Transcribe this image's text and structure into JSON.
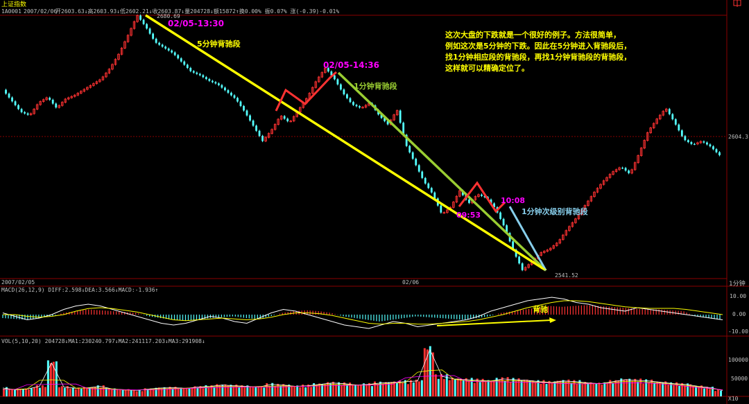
{
  "header": {
    "title": "上证指数",
    "code": "1A0001",
    "date": "2007/02/06",
    "quote": "开2603.63↓高2603.93↓低2602.21↓收2603.87↓量204728↓额15872↑换0.00% 振0.07% 涨(-0.39)-0.01%"
  },
  "time_axis": {
    "left_label": "2007/02/05",
    "center_label": "02/06",
    "right_label": "1分钟"
  },
  "price_panel": {
    "high_label": "2680.69",
    "low_label": "2541.52",
    "right_label": "2604.3",
    "annotations": {
      "t1": "02/05-13:30",
      "seg5": "5分钟背驰段",
      "t2": "02/05-14:36",
      "seg1": "1分钟背驰段",
      "t3": "09:53",
      "t4": "10:08",
      "seg1b": "1分钟次级别背驰段"
    },
    "note_lines": [
      "这次大盘的下跌就是一个很好的例子。方法很简单，",
      "例如这次是5分钟的下跌。因此在5分钟进入背驰段后，",
      "找1分钟相应段的背驰段，再找1分钟背驰段的背驰段，",
      "这样就可以精确定位了。"
    ]
  },
  "macd_panel": {
    "header": "MACD(26,12,9)  DIFF:2.598↓DEA:3.566↓MACD:-1.936↑",
    "ticks": [
      "10.00",
      "0.00",
      "-10.00"
    ],
    "annotation": "背驰"
  },
  "vol_panel": {
    "header": "VOL(5,10,20)  204728↓MA1:230240.797↓MA2:241117.203↓MA3:291908↓",
    "ticks": [
      "100000",
      "50000",
      "X10"
    ]
  },
  "colors": {
    "up": "#ff3232",
    "down": "#54ffff",
    "line5": "#ffff00",
    "line1": "#9acd32",
    "line1b": "#87ceeb",
    "magenta": "#ff00ff",
    "grid": "#8b0000",
    "text": "#c0c0c0"
  },
  "chart_data": {
    "type": "line",
    "title": "上证指数 1分钟",
    "y_axis_price": {
      "min": 2541.52,
      "max": 2680.69
    },
    "key_points": [
      {
        "label": "02/05-13:30",
        "price": 2680.69
      },
      {
        "label": "02/05-14:36",
        "price": 2652
      },
      {
        "label": "09:53",
        "price": 2580
      },
      {
        "label": "10:08",
        "price": 2583
      },
      {
        "label": "low",
        "price": 2541.52
      },
      {
        "label": "last",
        "price": 2604.3
      }
    ],
    "price_path": [
      2640,
      2634,
      2628,
      2626,
      2633,
      2636,
      2630,
      2635,
      2637,
      2640,
      2643,
      2646,
      2652,
      2660,
      2670,
      2680.69,
      2674,
      2666,
      2663,
      2660,
      2655,
      2650,
      2648,
      2645,
      2643,
      2639,
      2635,
      2628,
      2620,
      2612,
      2618,
      2626,
      2622,
      2629,
      2636,
      2645,
      2652,
      2646,
      2638,
      2632,
      2630,
      2633,
      2626,
      2621,
      2629,
      2610,
      2600,
      2590,
      2583,
      2572,
      2576,
      2585,
      2578,
      2583,
      2581,
      2575,
      2565,
      2552,
      2541.52,
      2546,
      2551,
      2553,
      2557,
      2564,
      2570,
      2577,
      2584,
      2590,
      2595,
      2598,
      2594,
      2605,
      2617,
      2624,
      2630,
      2622,
      2613,
      2610,
      2612,
      2609,
      2604.3
    ],
    "macd_scale": [
      -10,
      10
    ],
    "macd_histogram": [
      -2,
      -2.5,
      -3,
      -2,
      -1,
      1,
      2,
      3,
      2.5,
      2,
      1.5,
      1,
      -1,
      -2,
      -3,
      -3.5,
      -3,
      -2,
      -1.5,
      -1,
      -2,
      -2.5,
      -1,
      1,
      2,
      2.5,
      2,
      1,
      -1,
      -2,
      -3,
      -4,
      -3,
      -2,
      -1,
      -1.5,
      -2,
      -2.5,
      -3,
      -2,
      -1,
      1,
      2,
      3,
      4,
      5,
      4.5,
      5,
      5.5,
      5,
      4.5,
      4,
      3.5,
      3,
      3,
      2.5,
      2,
      -1,
      -2,
      -3
    ],
    "diff_line": [
      1,
      -1,
      -3,
      -2,
      0,
      3,
      5,
      6,
      5,
      3,
      1,
      -1,
      -3,
      -5,
      -6,
      -5,
      -3,
      -1,
      -2,
      -4,
      -5,
      -2,
      1,
      3,
      2,
      0,
      -2,
      -4,
      -6,
      -7,
      -8,
      -6,
      -4,
      -5,
      -7,
      -6,
      -5,
      -4,
      -3,
      -1,
      2,
      4,
      6,
      8,
      9,
      10,
      9,
      7,
      6,
      4,
      3,
      2,
      4,
      3,
      2,
      1,
      0,
      -1,
      -2,
      -3
    ],
    "dea_line": [
      0,
      0,
      -1,
      -1.5,
      -1,
      0,
      2,
      3.5,
      4,
      3.5,
      2.5,
      1.5,
      0,
      -1.5,
      -3,
      -3.5,
      -3,
      -2.5,
      -2,
      -2.5,
      -3,
      -2.5,
      -1.5,
      0,
      1,
      1,
      0.5,
      -0.5,
      -2,
      -3.5,
      -5,
      -5.5,
      -5,
      -5,
      -5.5,
      -5.5,
      -5,
      -4.5,
      -4,
      -3,
      -1.5,
      0,
      2,
      4,
      5.5,
      7,
      8,
      8,
      7.5,
      6.5,
      5.5,
      4.5,
      4,
      3.6,
      3.6,
      3.6,
      3,
      2,
      1,
      0
    ],
    "volume_max": 140000,
    "volume": [
      25000,
      20000,
      22000,
      30000,
      100000,
      28000,
      24000,
      26000,
      30000,
      22000,
      20000,
      18000,
      22000,
      25000,
      26000,
      24000,
      28000,
      30000,
      34000,
      32000,
      30000,
      28000,
      36000,
      34000,
      30000,
      32000,
      36000,
      40000,
      38000,
      34000,
      36000,
      40000,
      42000,
      44000,
      46000,
      140000,
      60000,
      52000,
      50000,
      48000,
      46000,
      52000,
      50000,
      48000,
      44000,
      42000,
      46000,
      44000,
      40000,
      38000,
      44000,
      50000,
      48000,
      46000,
      42000,
      38000,
      36000,
      30000,
      26000,
      18000
    ]
  }
}
